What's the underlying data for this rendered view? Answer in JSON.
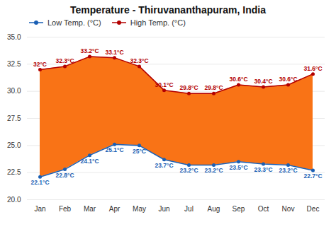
{
  "chart_data": {
    "type": "area",
    "title": "Temperature - Thiruvananthapuram, India",
    "categories": [
      "Jan",
      "Feb",
      "Mar",
      "Apr",
      "May",
      "Jun",
      "Jul",
      "Aug",
      "Sep",
      "Oct",
      "Nov",
      "Dec"
    ],
    "color": "#f97316",
    "series": [
      {
        "name": "Low Temp. (°C)",
        "color": "#1a5fb4",
        "values": [
          22.1,
          22.8,
          24.1,
          25.1,
          25.0,
          23.7,
          23.2,
          23.2,
          23.5,
          23.3,
          23.2,
          22.7
        ],
        "value_labels": [
          "22.1°C",
          "22.8°C",
          "24.1°C",
          "25.1°C",
          "25°C",
          "23.7°C",
          "23.2°C",
          "23.2°C",
          "23.5°C",
          "23.3°C",
          "23.2°C",
          "22.7°C"
        ]
      },
      {
        "name": "High Temp. (°C)",
        "color": "#b30000",
        "values": [
          32.0,
          32.3,
          33.2,
          33.1,
          32.3,
          30.1,
          29.8,
          29.8,
          30.6,
          30.4,
          30.6,
          31.6
        ],
        "value_labels": [
          "32°C",
          "32.3°C",
          "33.2°C",
          "33.1°C",
          "32.3°C",
          "30.1°C",
          "29.8°C",
          "29.8°C",
          "30.6°C",
          "30.4°C",
          "30.6°C",
          "31.6°C"
        ]
      }
    ],
    "ylim": [
      20.0,
      35.0
    ],
    "yticks": [
      {
        "value": 20.0,
        "label": "20.0"
      },
      22.5,
      {
        "value": 25.0,
        "label": "25.0"
      },
      27.5,
      {
        "value": 30.0,
        "label": "30.0"
      },
      32.5,
      {
        "value": 35.0,
        "label": "35.0"
      }
    ],
    "grid": true,
    "legend": "top-left",
    "data_labels": true,
    "marker": "circle"
  }
}
